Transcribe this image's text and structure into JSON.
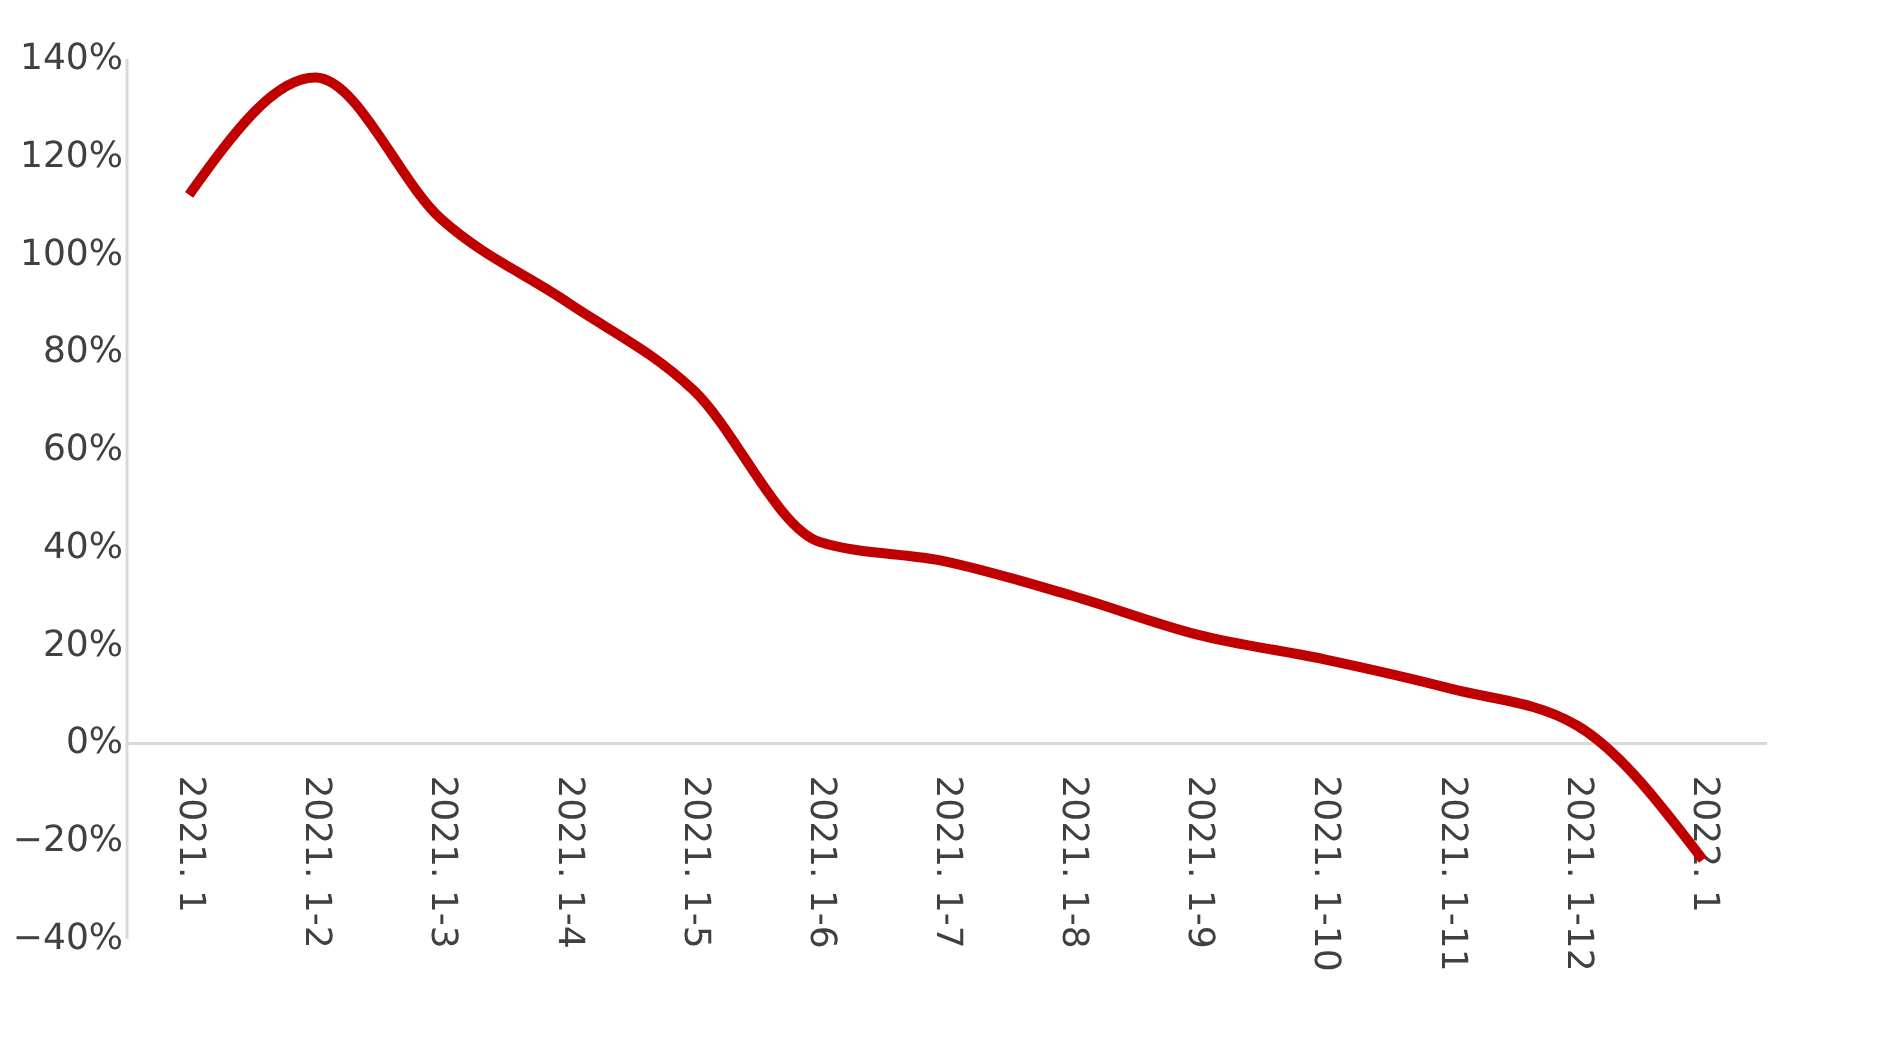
{
  "chart_data": {
    "type": "line",
    "categories": [
      "2021. 1",
      "2021. 1-2",
      "2021. 1-3",
      "2021. 1-4",
      "2021. 1-5",
      "2021. 1-6",
      "2021. 1-7",
      "2021. 1-8",
      "2021. 1-9",
      "2021. 1-10",
      "2021. 1-11",
      "2021. 1-12",
      "2022. 1"
    ],
    "series": [
      {
        "color": "#c00000",
        "values": [
          112,
          136,
          107,
          90,
          72,
          41,
          37,
          30,
          22,
          17,
          11,
          3.5,
          -24
        ]
      }
    ],
    "ylim": [
      -40,
      140
    ],
    "yticks": [
      {
        "value": -40,
        "label": "−40%"
      },
      {
        "value": -20,
        "label": "−20%"
      },
      {
        "value": 0,
        "label": "0%"
      },
      {
        "value": 20,
        "label": "20%"
      },
      {
        "value": 40,
        "label": "40%"
      },
      {
        "value": 60,
        "label": "60%"
      },
      {
        "value": 80,
        "label": "80%"
      },
      {
        "value": 100,
        "label": "100%"
      },
      {
        "value": 120,
        "label": "120%"
      },
      {
        "value": 140,
        "label": "140%"
      }
    ],
    "marker": "none",
    "line_style": "solid"
  }
}
